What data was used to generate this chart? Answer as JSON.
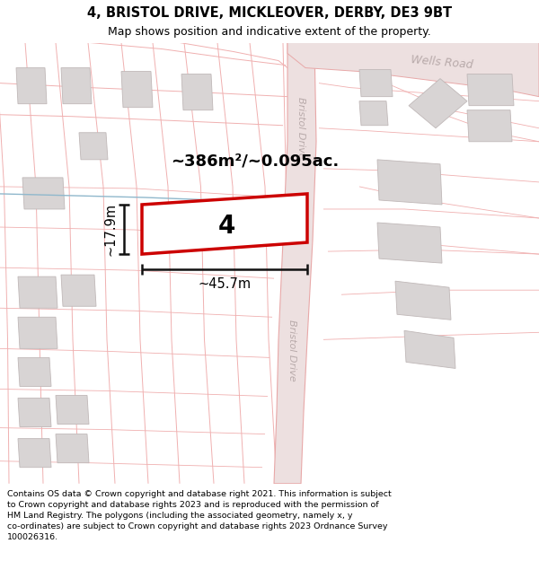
{
  "title": "4, BRISTOL DRIVE, MICKLEOVER, DERBY, DE3 9BT",
  "subtitle": "Map shows position and indicative extent of the property.",
  "footer": "Contains OS data © Crown copyright and database right 2021. This information is subject\nto Crown copyright and database rights 2023 and is reproduced with the permission of\nHM Land Registry. The polygons (including the associated geometry, namely x, y\nco-ordinates) are subject to Crown copyright and database rights 2023 Ordnance Survey\n100026316.",
  "map_bg": "#faf7f7",
  "road_fill": "#ede0e0",
  "road_edge": "#e8a8a8",
  "plot_line": "#f0b0b0",
  "building_fill": "#d8d4d4",
  "building_edge": "#c0b8b8",
  "highlight_edge": "#cc0000",
  "highlight_fill": "#ffffff",
  "road_label_color": "#b8aaaa",
  "dim_color": "#111111",
  "blue_line": "#90b8cc",
  "area_text": "~386m²/~0.095ac.",
  "width_text": "~45.7m",
  "height_text": "~17.9m",
  "property_number": "4",
  "wells_road": "Wells Road",
  "bristol_drive_top": "Bristol Drive",
  "bristol_drive_bot": "Bristol Drive",
  "title_fontsize": 10.5,
  "subtitle_fontsize": 9.0,
  "footer_fontsize": 6.8
}
